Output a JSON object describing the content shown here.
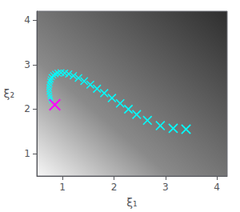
{
  "chart_data": {
    "type": "scatter",
    "xlabel": "ξ₁",
    "ylabel": "ξ₂",
    "xlim": [
      0.5,
      4.2
    ],
    "ylim": [
      0.5,
      4.2
    ],
    "xticks": [
      1,
      2,
      3,
      4
    ],
    "yticks": [
      1,
      2,
      3,
      4
    ],
    "grid": false,
    "series": [
      {
        "color": "#00FFFF",
        "marker": "x",
        "values": [
          [
            0.78,
            2.18
          ],
          [
            0.77,
            2.22
          ],
          [
            0.76,
            2.27
          ],
          [
            0.75,
            2.32
          ],
          [
            0.74,
            2.38
          ],
          [
            0.74,
            2.44
          ],
          [
            0.74,
            2.5
          ],
          [
            0.75,
            2.56
          ],
          [
            0.76,
            2.62
          ],
          [
            0.77,
            2.67
          ],
          [
            0.79,
            2.72
          ],
          [
            0.82,
            2.76
          ],
          [
            0.86,
            2.79
          ],
          [
            0.91,
            2.81
          ],
          [
            0.97,
            2.82
          ],
          [
            1.04,
            2.81
          ],
          [
            1.12,
            2.79
          ],
          [
            1.21,
            2.75
          ],
          [
            1.31,
            2.7
          ],
          [
            1.42,
            2.63
          ],
          [
            1.54,
            2.55
          ],
          [
            1.67,
            2.46
          ],
          [
            1.81,
            2.36
          ],
          [
            1.96,
            2.25
          ],
          [
            2.12,
            2.13
          ],
          [
            2.28,
            2.0
          ],
          [
            2.44,
            1.88
          ],
          [
            2.65,
            1.75
          ],
          [
            2.9,
            1.63
          ],
          [
            3.15,
            1.57
          ],
          [
            3.4,
            1.55
          ]
        ]
      },
      {
        "color": "#FF00FF",
        "marker": "x",
        "values": [
          [
            0.85,
            2.1
          ]
        ]
      }
    ]
  }
}
